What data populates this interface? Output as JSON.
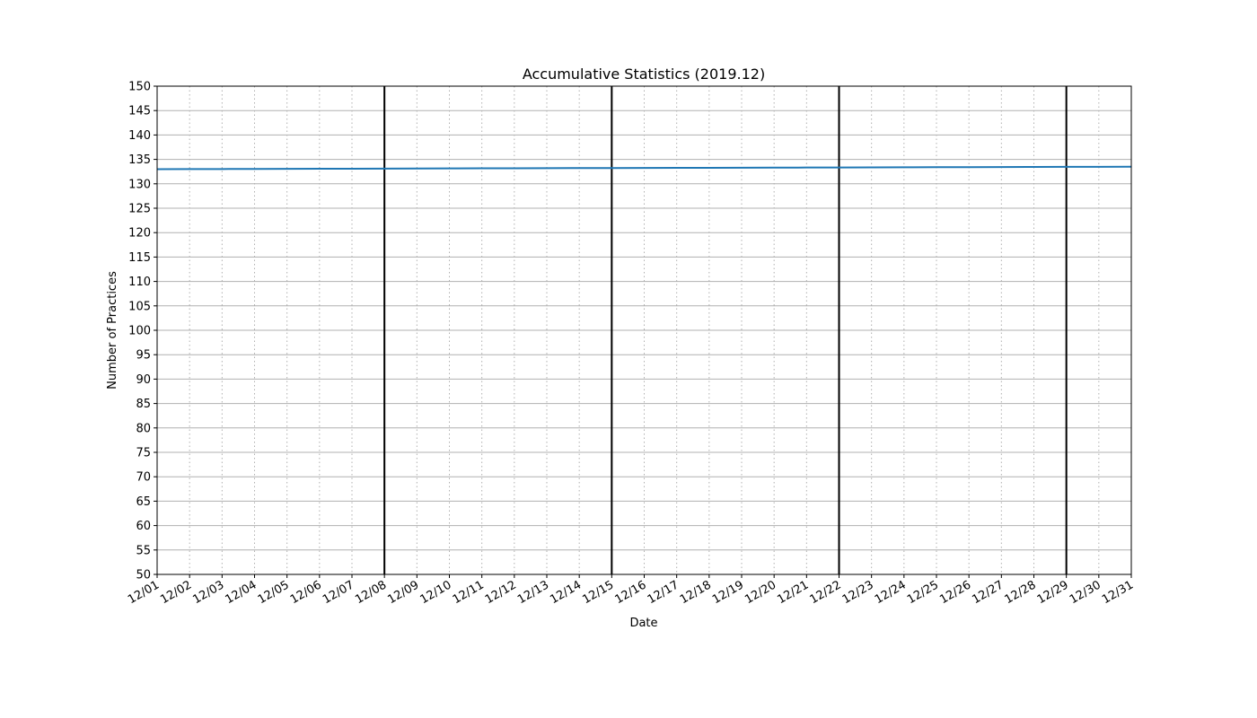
{
  "chart_data": {
    "type": "line",
    "title": "Accumulative Statistics (2019.12)",
    "xlabel": "Date",
    "ylabel": "Number of Practices",
    "x": [
      "12/01",
      "12/02",
      "12/03",
      "12/04",
      "12/05",
      "12/06",
      "12/07",
      "12/08",
      "12/09",
      "12/10",
      "12/11",
      "12/12",
      "12/13",
      "12/14",
      "12/15",
      "12/16",
      "12/17",
      "12/18",
      "12/19",
      "12/20",
      "12/21",
      "12/22",
      "12/23",
      "12/24",
      "12/25",
      "12/26",
      "12/27",
      "12/28",
      "12/29",
      "12/30",
      "12/31"
    ],
    "ylim": [
      50,
      150
    ],
    "yticks": [
      50,
      55,
      60,
      65,
      70,
      75,
      80,
      85,
      90,
      95,
      100,
      105,
      110,
      115,
      120,
      125,
      130,
      135,
      140,
      145,
      150
    ],
    "week_markers": [
      "12/08",
      "12/15",
      "12/22",
      "12/29"
    ],
    "series": [
      {
        "values": [
          133.0,
          133.02,
          133.03,
          133.05,
          133.07,
          133.08,
          133.1,
          133.12,
          133.13,
          133.15,
          133.17,
          133.18,
          133.2,
          133.22,
          133.23,
          133.25,
          133.27,
          133.28,
          133.3,
          133.32,
          133.33,
          133.35,
          133.37,
          133.38,
          133.4,
          133.42,
          133.43,
          133.45,
          133.47,
          133.48,
          133.5
        ],
        "color": "#1f77b4"
      }
    ],
    "grid": true,
    "line_color": "#1f77b4",
    "grid_color": "#b0b0b0",
    "marker_color": "#000000"
  }
}
